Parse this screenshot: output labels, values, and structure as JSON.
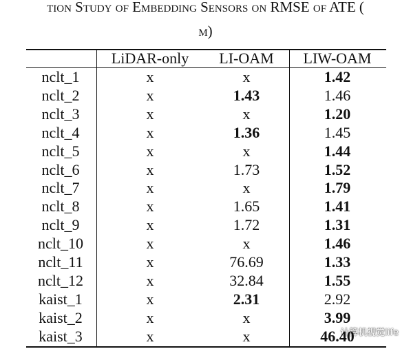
{
  "header": {
    "title_line_1": "tion Study of Embedding Sensors on RMSE of ATE (",
    "title_line_2": "m)"
  },
  "table": {
    "columns": [
      "",
      "LiDAR-only",
      "LI-OAM",
      "LIW-OAM"
    ],
    "rows": [
      [
        "nclt_1",
        "x",
        "x",
        "1.42"
      ],
      [
        "nclt_2",
        "x",
        "1.43",
        "1.46"
      ],
      [
        "nclt_3",
        "x",
        "x",
        "1.20"
      ],
      [
        "nclt_4",
        "x",
        "1.36",
        "1.45"
      ],
      [
        "nclt_5",
        "x",
        "x",
        "1.44"
      ],
      [
        "nclt_6",
        "x",
        "1.73",
        "1.52"
      ],
      [
        "nclt_7",
        "x",
        "x",
        "1.79"
      ],
      [
        "nclt_8",
        "x",
        "1.65",
        "1.41"
      ],
      [
        "nclt_9",
        "x",
        "1.72",
        "1.31"
      ],
      [
        "nclt_10",
        "x",
        "x",
        "1.46"
      ],
      [
        "nclt_11",
        "x",
        "76.69",
        "1.33"
      ],
      [
        "nclt_12",
        "x",
        "32.84",
        "1.55"
      ],
      [
        "kaist_1",
        "x",
        "2.31",
        "2.92"
      ],
      [
        "kaist_2",
        "x",
        "x",
        "3.99"
      ],
      [
        "kaist_3",
        "x",
        "x",
        "46.40"
      ]
    ],
    "bold_column": [
      3,
      2,
      3,
      2,
      3,
      3,
      3,
      3,
      3,
      3,
      3,
      3,
      2,
      3,
      3
    ]
  },
  "watermark": "计算机视觉life"
}
